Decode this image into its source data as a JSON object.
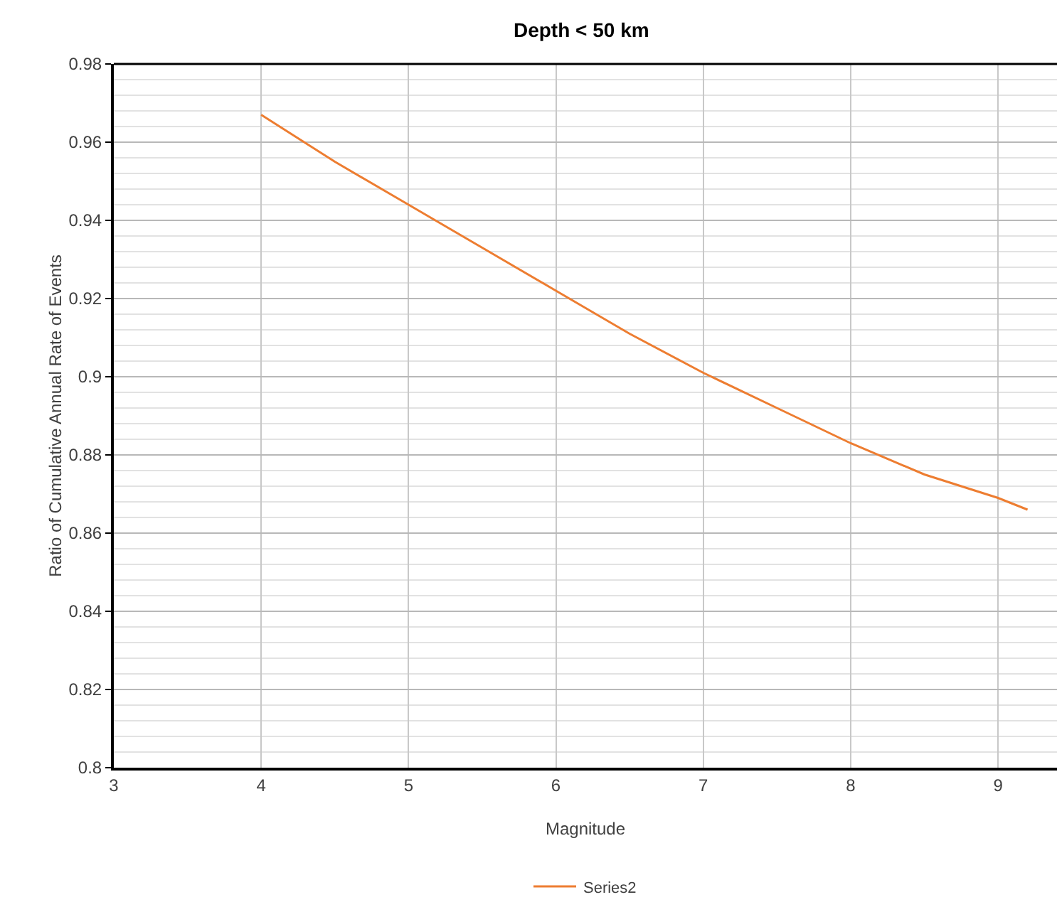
{
  "chart_data": {
    "type": "line",
    "title": "Depth < 50 km",
    "xlabel": "Magnitude",
    "ylabel": "Ratio of Cumulative Annual Rate of Events",
    "x": [
      4,
      4.5,
      5,
      5.5,
      6,
      6.5,
      7,
      7.5,
      8,
      8.5,
      9,
      9.2
    ],
    "series": [
      {
        "name": "Series2",
        "color": "#ed7d31",
        "values": [
          0.967,
          0.955,
          0.944,
          0.933,
          0.922,
          0.911,
          0.901,
          0.892,
          0.883,
          0.875,
          0.869,
          0.866
        ]
      }
    ],
    "xlim": [
      3,
      9.4
    ],
    "xticks": [
      3,
      4,
      5,
      6,
      7,
      8,
      9
    ],
    "ylim": [
      0.8,
      0.98
    ],
    "yticks": [
      {
        "value": 0.8,
        "label": "0.8"
      },
      0.82,
      0.84,
      0.86,
      0.88,
      {
        "value": 0.9,
        "label": "0.9"
      },
      0.92,
      0.94,
      0.96,
      0.98
    ],
    "grid": true,
    "legend": "bottom",
    "marker": "none",
    "line_style": "solid"
  }
}
